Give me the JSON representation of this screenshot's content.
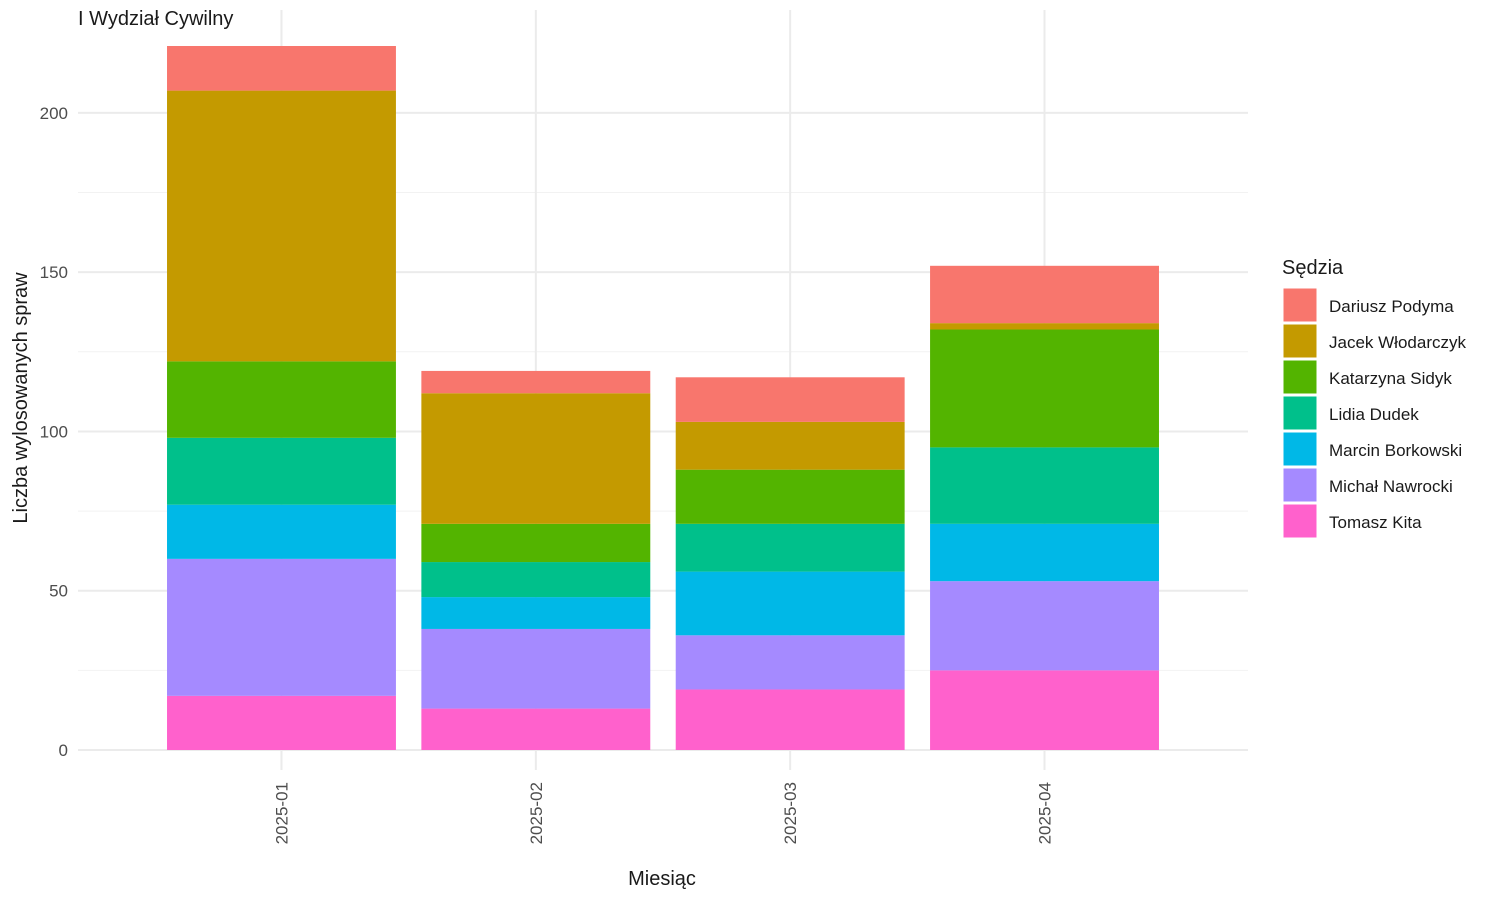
{
  "chart_data": {
    "type": "bar",
    "stacked": true,
    "title": "I Wydział Cywilny",
    "xlabel": "Miesiąc",
    "ylabel": "Liczba wylosowanych spraw",
    "ylim": [
      0,
      221
    ],
    "yticks": [
      0,
      50,
      100,
      150,
      200
    ],
    "grid": true,
    "legend_title": "Sędzia",
    "legend_position": "right",
    "categories": [
      "2025-01",
      "2025-02",
      "2025-03",
      "2025-04"
    ],
    "series": [
      {
        "name": "Tomasz Kita",
        "color": "#FF61CC",
        "values": [
          17,
          13,
          19,
          25
        ]
      },
      {
        "name": "Michał Nawrocki",
        "color": "#A58AFF",
        "values": [
          43,
          25,
          17,
          28
        ]
      },
      {
        "name": "Marcin Borkowski",
        "color": "#00B8E7",
        "values": [
          17,
          10,
          20,
          18
        ]
      },
      {
        "name": "Lidia Dudek",
        "color": "#00C08B",
        "values": [
          21,
          11,
          15,
          24
        ]
      },
      {
        "name": "Katarzyna Sidyk",
        "color": "#53B400",
        "values": [
          24,
          12,
          17,
          37
        ]
      },
      {
        "name": "Jacek Włodarczyk",
        "color": "#C49A00",
        "values": [
          85,
          41,
          15,
          2
        ]
      },
      {
        "name": "Dariusz Podyma",
        "color": "#F8766D",
        "values": [
          14,
          7,
          14,
          18
        ]
      }
    ],
    "legend_order": [
      "Dariusz Podyma",
      "Jacek Włodarczyk",
      "Katarzyna Sidyk",
      "Lidia Dudek",
      "Marcin Borkowski",
      "Michał Nawrocki",
      "Tomasz Kita"
    ]
  }
}
